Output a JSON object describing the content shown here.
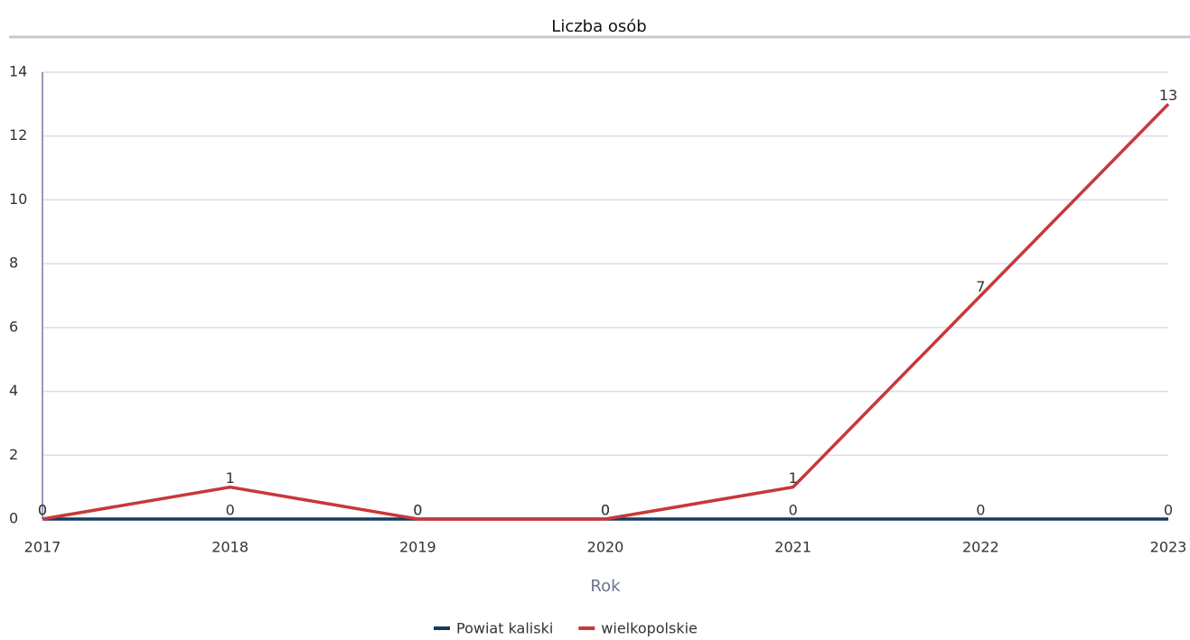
{
  "chart_data": {
    "type": "line",
    "title": "Liczba osób",
    "x_label": "Rok",
    "categories": [
      "2017",
      "2018",
      "2019",
      "2020",
      "2021",
      "2022",
      "2023"
    ],
    "series": [
      {
        "name": "Powiat kaliski",
        "color": "#163a5f",
        "values": [
          0,
          0,
          0,
          0,
          0,
          0,
          0
        ]
      },
      {
        "name": "wielkopolskie",
        "color": "#c8383a",
        "values": [
          0,
          1,
          0,
          0,
          1,
          7,
          13
        ]
      }
    ],
    "ylim": [
      0,
      14
    ],
    "yticks": [
      0,
      2,
      4,
      6,
      8,
      10,
      12,
      14
    ],
    "grid": true,
    "legend": "bottom"
  }
}
